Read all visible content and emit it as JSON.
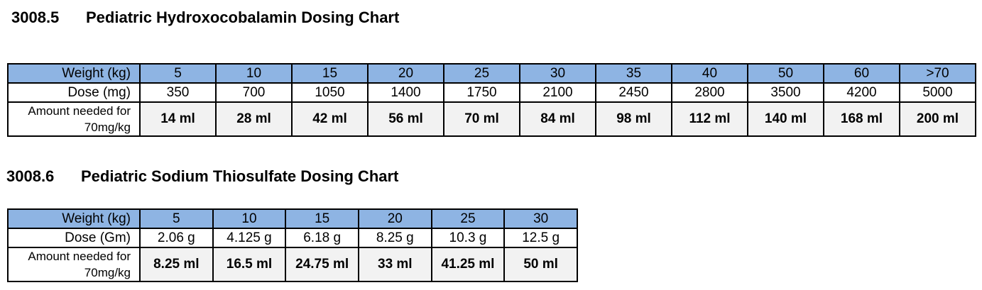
{
  "section1": {
    "number": "3008.5",
    "title": "Pediatric Hydroxocobalamin Dosing Chart",
    "weight_label": "Weight (kg)",
    "dose_label": "Dose (mg)",
    "amount_label": "Amount needed for 70mg/kg",
    "weights": [
      "5",
      "10",
      "15",
      "20",
      "25",
      "30",
      "35",
      "40",
      "50",
      "60",
      ">70"
    ],
    "doses": [
      "350",
      "700",
      "1050",
      "1400",
      "1750",
      "2100",
      "2450",
      "2800",
      "3500",
      "4200",
      "5000"
    ],
    "amounts": [
      "14 ml",
      "28 ml",
      "42 ml",
      "56 ml",
      "70 ml",
      "84 ml",
      "98 ml",
      "112 ml",
      "140 ml",
      "168 ml",
      "200 ml"
    ]
  },
  "section2": {
    "number": "3008.6",
    "title": "Pediatric Sodium Thiosulfate Dosing Chart",
    "weight_label": "Weight (kg)",
    "dose_label": "Dose (Gm)",
    "amount_label": "Amount needed for 70mg/kg",
    "weights": [
      "5",
      "10",
      "15",
      "20",
      "25",
      "30"
    ],
    "doses": [
      "2.06 g",
      "4.125 g",
      "6.18 g",
      "8.25 g",
      "10.3 g",
      "12.5 g"
    ],
    "amounts": [
      "8.25 ml",
      "16.5 ml",
      "24.75 ml",
      "33 ml",
      "41.25 ml",
      "50 ml"
    ]
  },
  "colors": {
    "header_fill": "#8eb4e3",
    "amount_fill": "#f2f2f2"
  }
}
